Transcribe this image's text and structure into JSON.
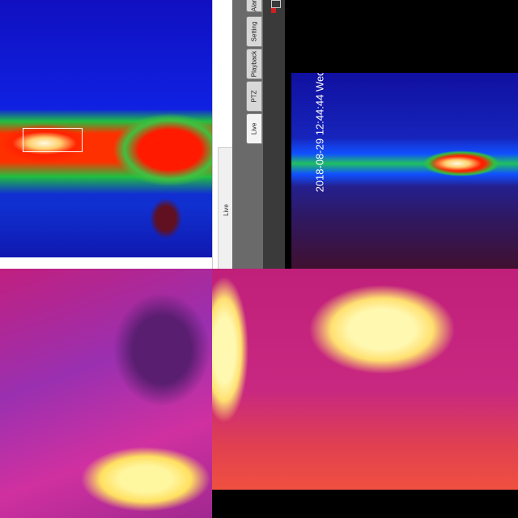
{
  "tabs": [
    "Live",
    "PTZ",
    "Playback",
    "Setting",
    "Alar"
  ],
  "timestamp": "2018-08-29 12:44:44 Wed",
  "browser_tab": "Live"
}
